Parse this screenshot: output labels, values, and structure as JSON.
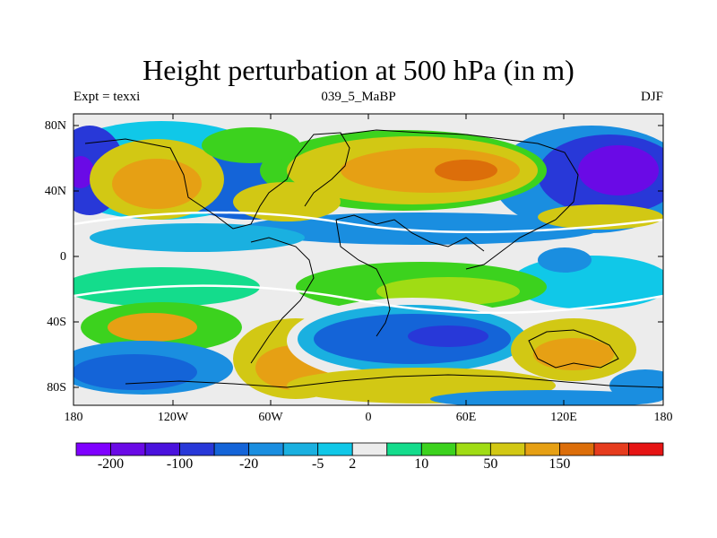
{
  "title": "Height perturbation at 500 hPa (in m)",
  "subtitle_left": "Expt = texxi",
  "subtitle_center": "039_5_MaBP",
  "subtitle_right": "DJF",
  "lat_ticks": [
    "80N",
    "40N",
    "0",
    "40S",
    "80S"
  ],
  "lon_ticks": [
    "180",
    "120W",
    "60W",
    "0",
    "60E",
    "120E",
    "180"
  ],
  "colorbar": {
    "colors": [
      "#7f00ff",
      "#6a0ae6",
      "#4a12dd",
      "#2838d8",
      "#1464d8",
      "#1a8ee0",
      "#1ab0e0",
      "#10c8e8",
      "#ececec",
      "#14dc8c",
      "#3cd21e",
      "#a0dc14",
      "#d2c814",
      "#e6a014",
      "#dc6e0a",
      "#e63c1e",
      "#e61414"
    ],
    "labels": [
      "-200",
      "-100",
      "-20",
      "-5",
      "2",
      "10",
      "50",
      "150"
    ],
    "label_after_box": [
      1,
      3,
      5,
      7,
      8,
      10,
      12,
      14
    ]
  },
  "map_background": "#ececec"
}
